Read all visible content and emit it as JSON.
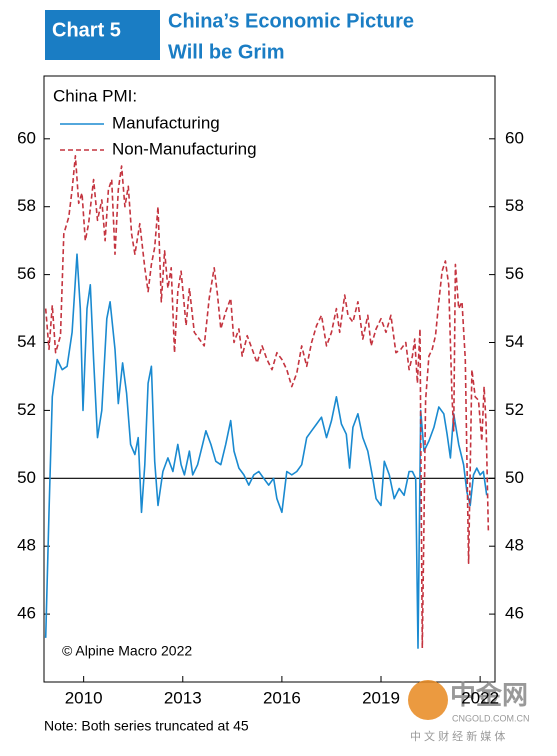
{
  "header": {
    "label": "Chart 5",
    "title_lines": [
      "China’s Economic Picture",
      "Will be Grim"
    ]
  },
  "chart_data": {
    "type": "line",
    "legend_title": "China PMI:",
    "annotation": "© Alpine Macro 2022",
    "note": "Note: Both series truncated at 45",
    "reference_line": 50,
    "xlim": [
      2008.8,
      2022.45
    ],
    "xticks": [
      2010,
      2013,
      2016,
      2019,
      2022
    ],
    "ylim": [
      44,
      61.85
    ],
    "yticks": [
      46,
      48,
      50,
      52,
      54,
      56,
      58,
      60
    ],
    "y2lim": [
      44,
      61.85
    ],
    "y2ticks": [
      46,
      48,
      50,
      52,
      54,
      56,
      58,
      60
    ],
    "series": [
      {
        "name": "Manufacturing",
        "color": "#1a8ad0",
        "dashed": false,
        "x": [
          2008.85,
          2008.95,
          2009.05,
          2009.2,
          2009.35,
          2009.5,
          2009.65,
          2009.8,
          2009.9,
          2009.98,
          2010.1,
          2010.2,
          2010.3,
          2010.42,
          2010.55,
          2010.7,
          2010.8,
          2010.95,
          2011.05,
          2011.18,
          2011.3,
          2011.42,
          2011.55,
          2011.65,
          2011.75,
          2011.85,
          2011.95,
          2012.05,
          2012.15,
          2012.25,
          2012.4,
          2012.55,
          2012.7,
          2012.85,
          2012.95,
          2013.05,
          2013.2,
          2013.3,
          2013.45,
          2013.6,
          2013.7,
          2013.85,
          2014.0,
          2014.15,
          2014.3,
          2014.45,
          2014.55,
          2014.7,
          2014.85,
          2015.0,
          2015.15,
          2015.3,
          2015.45,
          2015.6,
          2015.75,
          2015.85,
          2016.0,
          2016.15,
          2016.3,
          2016.45,
          2016.6,
          2016.75,
          2016.9,
          2017.05,
          2017.2,
          2017.35,
          2017.5,
          2017.65,
          2017.8,
          2017.95,
          2018.05,
          2018.15,
          2018.3,
          2018.45,
          2018.6,
          2018.75,
          2018.85,
          2019.0,
          2019.1,
          2019.25,
          2019.4,
          2019.55,
          2019.7,
          2019.85,
          2019.95,
          2020.05,
          2020.12,
          2020.2,
          2020.3,
          2020.45,
          2020.6,
          2020.75,
          2020.9,
          2021.0,
          2021.1,
          2021.2,
          2021.35,
          2021.5,
          2021.6,
          2021.7,
          2021.8,
          2021.9,
          2022.0,
          2022.1,
          2022.2
        ],
        "values": [
          45.3,
          49,
          52.4,
          53.5,
          53.2,
          53.3,
          54.3,
          56.6,
          55,
          52,
          55,
          55.7,
          53.5,
          51.2,
          52,
          54.7,
          55.2,
          53.8,
          52.2,
          53.4,
          52.5,
          51,
          50.7,
          51.2,
          49,
          50.4,
          52.8,
          53.3,
          50.5,
          49.2,
          50.2,
          50.6,
          50.2,
          51,
          50.4,
          50.1,
          50.8,
          50.1,
          50.4,
          51,
          51.4,
          51,
          50.5,
          50.4,
          51,
          51.7,
          50.8,
          50.3,
          50.1,
          49.8,
          50.1,
          50.2,
          50,
          49.8,
          50,
          49.4,
          49,
          50.2,
          50.1,
          50.2,
          50.4,
          51.2,
          51.4,
          51.6,
          51.8,
          51.2,
          51.7,
          52.4,
          51.6,
          51.3,
          50.3,
          51.5,
          51.9,
          51.2,
          50.8,
          50,
          49.4,
          49.2,
          50.5,
          50.1,
          49.4,
          49.7,
          49.5,
          50.2,
          50.2,
          50,
          45,
          52,
          50.8,
          51.1,
          51.5,
          52.1,
          51.9,
          51.3,
          50.6,
          51.9,
          51,
          50.4,
          49.6,
          49.2,
          50.1,
          50.3,
          50.1,
          50.2,
          49.5
        ]
      },
      {
        "name": "Non-Manufacturing",
        "color": "#c4343f",
        "dashed": true,
        "x": [
          2008.85,
          2008.95,
          2009.05,
          2009.15,
          2009.3,
          2009.4,
          2009.55,
          2009.65,
          2009.75,
          2009.85,
          2009.95,
          2010.05,
          2010.15,
          2010.3,
          2010.42,
          2010.55,
          2010.65,
          2010.75,
          2010.85,
          2010.95,
          2011.05,
          2011.15,
          2011.25,
          2011.35,
          2011.45,
          2011.55,
          2011.7,
          2011.85,
          2011.95,
          2012.05,
          2012.15,
          2012.25,
          2012.35,
          2012.45,
          2012.55,
          2012.65,
          2012.75,
          2012.85,
          2012.95,
          2013.1,
          2013.2,
          2013.35,
          2013.5,
          2013.65,
          2013.8,
          2013.95,
          2014.05,
          2014.15,
          2014.3,
          2014.45,
          2014.55,
          2014.7,
          2014.8,
          2014.95,
          2015.1,
          2015.25,
          2015.4,
          2015.55,
          2015.7,
          2015.85,
          2016.0,
          2016.15,
          2016.3,
          2016.45,
          2016.6,
          2016.75,
          2016.9,
          2017.05,
          2017.2,
          2017.35,
          2017.5,
          2017.65,
          2017.75,
          2017.9,
          2018.0,
          2018.15,
          2018.3,
          2018.45,
          2018.6,
          2018.7,
          2018.85,
          2019.0,
          2019.15,
          2019.3,
          2019.45,
          2019.6,
          2019.75,
          2019.85,
          2019.95,
          2020.02,
          2020.1,
          2020.18,
          2020.25,
          2020.35,
          2020.45,
          2020.55,
          2020.65,
          2020.75,
          2020.85,
          2020.95,
          2021.05,
          2021.15,
          2021.2,
          2021.25,
          2021.35,
          2021.45,
          2021.55,
          2021.65,
          2021.75,
          2021.85,
          2021.95,
          2022.05,
          2022.12,
          2022.18,
          2022.25
        ],
        "values": [
          55,
          53.8,
          55.1,
          53.7,
          54.2,
          57.2,
          57.7,
          58.5,
          59.5,
          58.1,
          58.4,
          57,
          57.5,
          58.8,
          57.6,
          58.2,
          57,
          58.5,
          58.8,
          56.6,
          58.5,
          59.2,
          58,
          58.6,
          57.2,
          56.6,
          57.5,
          56.2,
          55.5,
          56.3,
          56.8,
          58,
          55.2,
          56.7,
          55.6,
          56.2,
          53.7,
          55.5,
          56.1,
          54.5,
          55.6,
          54.3,
          54.1,
          53.9,
          55.3,
          56.2,
          55.4,
          54.4,
          54.9,
          55.3,
          54,
          54.4,
          53.6,
          54.2,
          53.8,
          53.4,
          53.9,
          53.5,
          53.2,
          53.7,
          53.5,
          53.2,
          52.7,
          53.1,
          53.9,
          53.3,
          54,
          54.5,
          54.8,
          53.9,
          54.3,
          55,
          54.3,
          55.4,
          54.8,
          54.6,
          55.2,
          54.1,
          54.8,
          53.9,
          54.4,
          54.7,
          54.3,
          54.8,
          53.7,
          53.8,
          54,
          53.2,
          53.6,
          54.1,
          52.8,
          54.4,
          45,
          52.3,
          53.6,
          53.8,
          54.2,
          55.2,
          56.1,
          56.4,
          55.7,
          52.4,
          51.4,
          56.3,
          55,
          55.2,
          53.5,
          47.5,
          53.2,
          52.4,
          52.3,
          51.1,
          52.7,
          51.6,
          48.4
        ]
      }
    ]
  },
  "watermark": {
    "logo": "中金网",
    "site": "CNGOLD.COM.CN",
    "tagline": "中 文 财 经 新 媒 体"
  }
}
